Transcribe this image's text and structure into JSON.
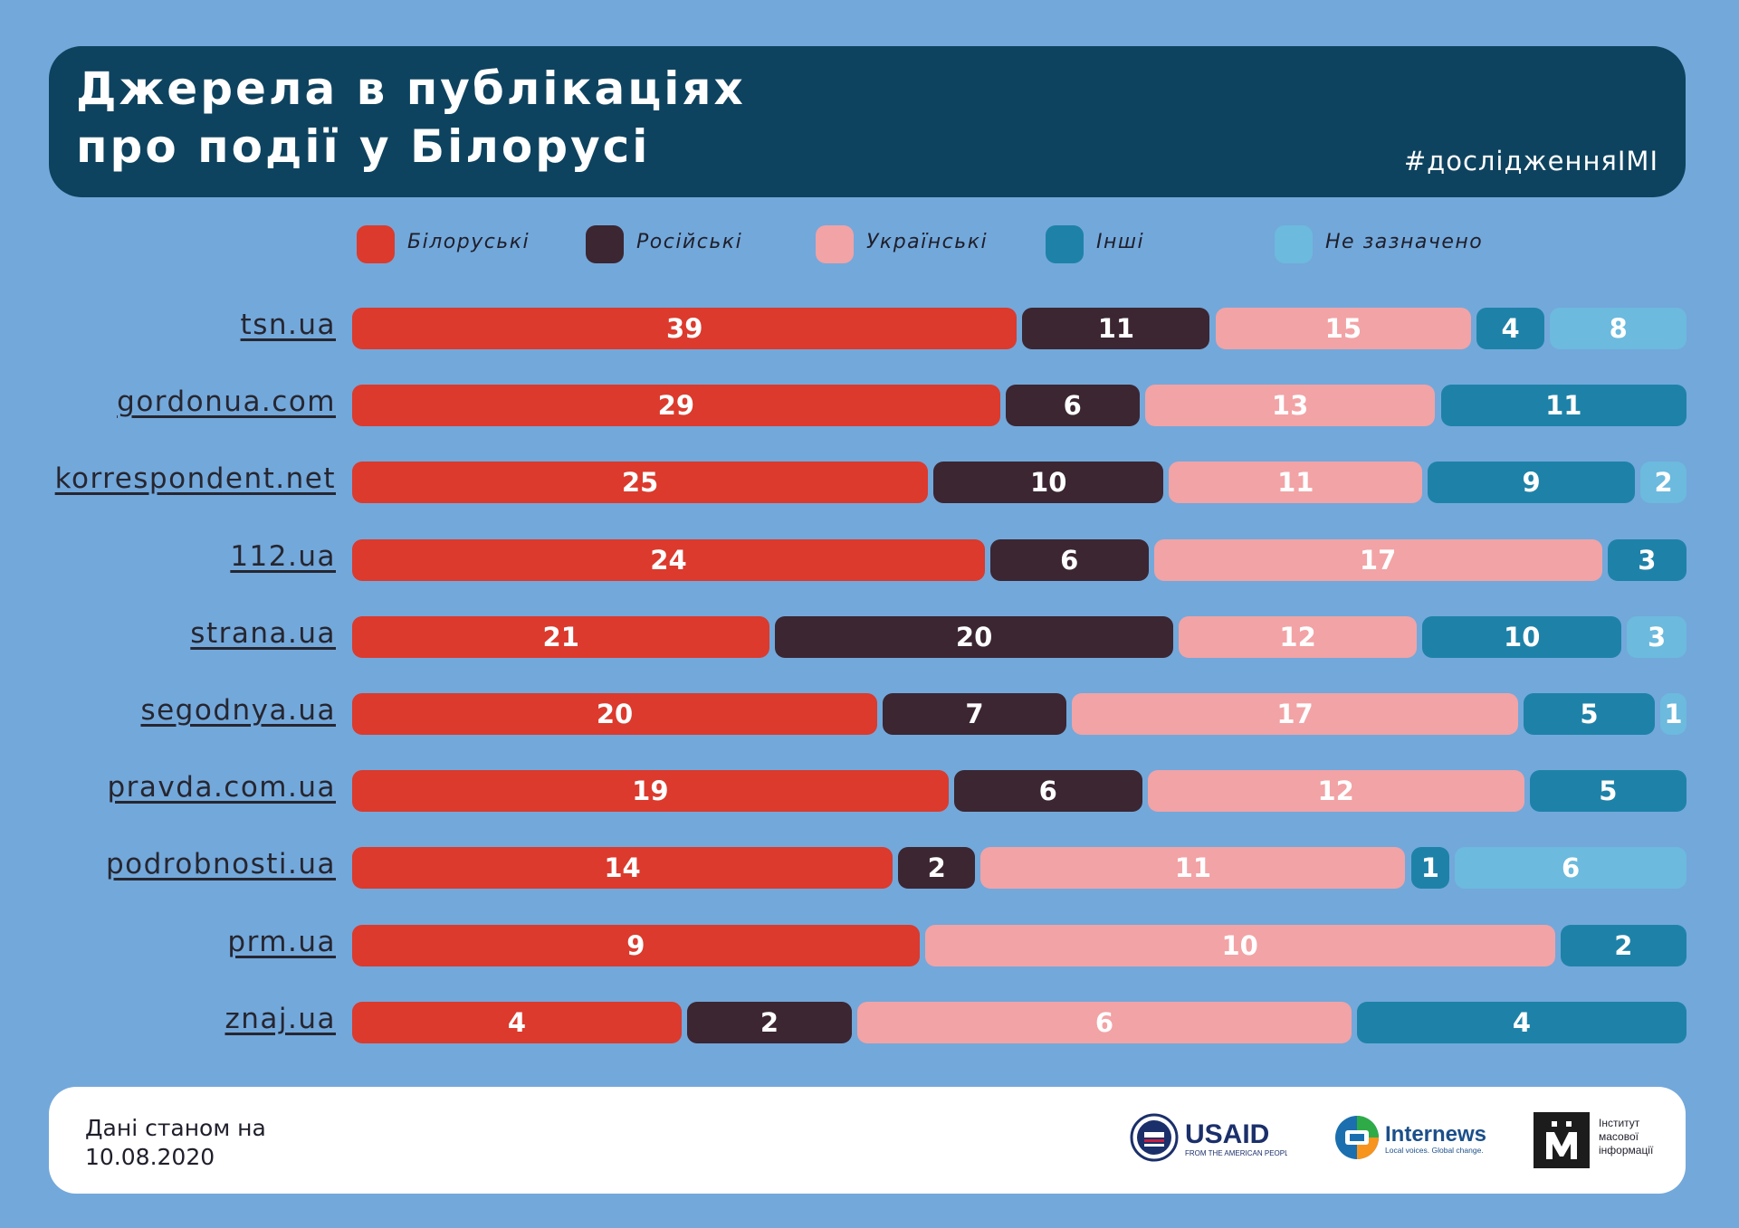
{
  "header": {
    "title_line1": "Джерела в публікаціях",
    "title_line2": "про події у Білорусі",
    "hashtag": "#дослідженняIMI"
  },
  "legend": [
    {
      "label": "Білоруські",
      "color": "#db3a2d"
    },
    {
      "label": "Російські",
      "color": "#3b2632"
    },
    {
      "label": "Українські",
      "color": "#f2a3a5"
    },
    {
      "label": "Інші",
      "color": "#1e82a8"
    },
    {
      "label": "Не зазначено",
      "color": "#6cbadd"
    }
  ],
  "chart_data": {
    "type": "bar",
    "orientation": "horizontal",
    "stacked": true,
    "categories": [
      "tsn.ua",
      "gordonua.com",
      "korrespondent.net",
      "112.ua",
      "strana.ua",
      "segodnya.ua",
      "pravda.com.ua",
      "podrobnosti.ua",
      "prm.ua",
      "znaj.ua"
    ],
    "series": [
      {
        "name": "Білоруські",
        "values": [
          39,
          29,
          25,
          24,
          21,
          20,
          19,
          14,
          9,
          4
        ]
      },
      {
        "name": "Російські",
        "values": [
          11,
          6,
          10,
          6,
          20,
          7,
          6,
          2,
          0,
          2
        ]
      },
      {
        "name": "Українські",
        "values": [
          15,
          13,
          11,
          17,
          12,
          17,
          12,
          11,
          10,
          6
        ]
      },
      {
        "name": "Інші",
        "values": [
          4,
          11,
          9,
          3,
          10,
          5,
          5,
          1,
          2,
          4
        ]
      },
      {
        "name": "Не зазначено",
        "values": [
          8,
          0,
          2,
          0,
          3,
          1,
          0,
          6,
          0,
          0
        ]
      }
    ],
    "normalized": true,
    "data_labels": true,
    "legend_position": "top",
    "grid": false
  },
  "footer": {
    "note_line1": "Дані станом на",
    "note_line2": "10.08.2020",
    "usaid_name": "USAID",
    "usaid_tagline": "FROM THE AMERICAN PEOPLE",
    "internews_name": "Internews",
    "internews_tagline": "Local voices. Global change.",
    "imi_line1": "Інститут",
    "imi_line2": "масової",
    "imi_line3": "інформації"
  }
}
